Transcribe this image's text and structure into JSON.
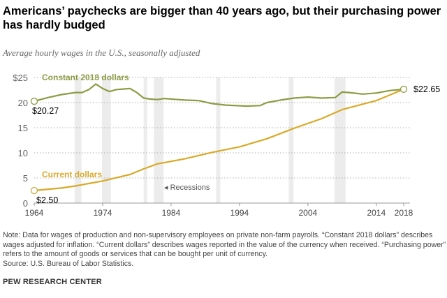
{
  "header": {
    "title": "Americans’ paychecks are bigger than 40 years ago, but their purchasing power has hardly budged",
    "subtitle": "Average hourly wages in the U.S., seasonally adjusted"
  },
  "chart_data": {
    "type": "line",
    "xlim": [
      1964,
      2018
    ],
    "ylim": [
      0,
      25
    ],
    "x_ticks": [
      "1964",
      "1974",
      "1984",
      "1994",
      "2004",
      "2014",
      "2018"
    ],
    "y_ticks": [
      "$25",
      "20",
      "15",
      "10",
      "5",
      "0"
    ],
    "grid": true,
    "recessions_label": "Recessions",
    "recessions": [
      [
        1969.9,
        1970.9
      ],
      [
        1973.9,
        1975.2
      ],
      [
        1980.0,
        1980.5
      ],
      [
        1981.5,
        1982.9
      ],
      [
        1990.6,
        1991.2
      ],
      [
        2001.2,
        2001.9
      ],
      [
        2007.9,
        2009.5
      ]
    ],
    "series": [
      {
        "name": "Constant 2018 dollars",
        "color": "#8d9b44",
        "start_label": "$20.27",
        "end_label": "$22.65",
        "x": [
          1964,
          1966,
          1968,
          1970,
          1971,
          1972,
          1973,
          1974,
          1975,
          1976,
          1977,
          1978,
          1979,
          1980,
          1981,
          1982,
          1983,
          1986,
          1988,
          1990,
          1992,
          1995,
          1997,
          1998,
          2000,
          2002,
          2004,
          2006,
          2008,
          2009,
          2010,
          2012,
          2014,
          2016,
          2018
        ],
        "y": [
          20.27,
          21.0,
          21.6,
          22.0,
          22.0,
          22.6,
          23.7,
          22.8,
          22.2,
          22.6,
          22.7,
          22.8,
          22.0,
          20.9,
          20.7,
          20.6,
          20.8,
          20.5,
          20.4,
          19.8,
          19.5,
          19.3,
          19.4,
          20.0,
          20.5,
          20.9,
          21.1,
          20.9,
          21.0,
          22.1,
          22.0,
          21.7,
          21.9,
          22.4,
          22.65
        ]
      },
      {
        "name": "Current dollars",
        "color": "#d9a928",
        "start_label": "$2.50",
        "end_label": "",
        "x": [
          1964,
          1968,
          1970,
          1974,
          1978,
          1980,
          1982,
          1986,
          1990,
          1994,
          1998,
          2002,
          2006,
          2009,
          2014,
          2018
        ],
        "y": [
          2.5,
          3.0,
          3.4,
          4.4,
          5.7,
          6.8,
          7.8,
          8.8,
          10.1,
          11.2,
          12.8,
          14.9,
          16.8,
          18.6,
          20.4,
          22.65
        ]
      }
    ]
  },
  "footer": {
    "note": "Note: Data for wages of production and non-supervisory employees on private non-farm payrolls. “Constant 2018 dollars” describes wages adjusted for inflation. “Current dollars” describes wages reported in the value of the currency when received. “Purchasing power” refers to the amount of goods or services that can be bought per unit of currency.",
    "source": "Source: U.S. Bureau of Labor Statistics.",
    "brand": "PEW RESEARCH CENTER"
  }
}
